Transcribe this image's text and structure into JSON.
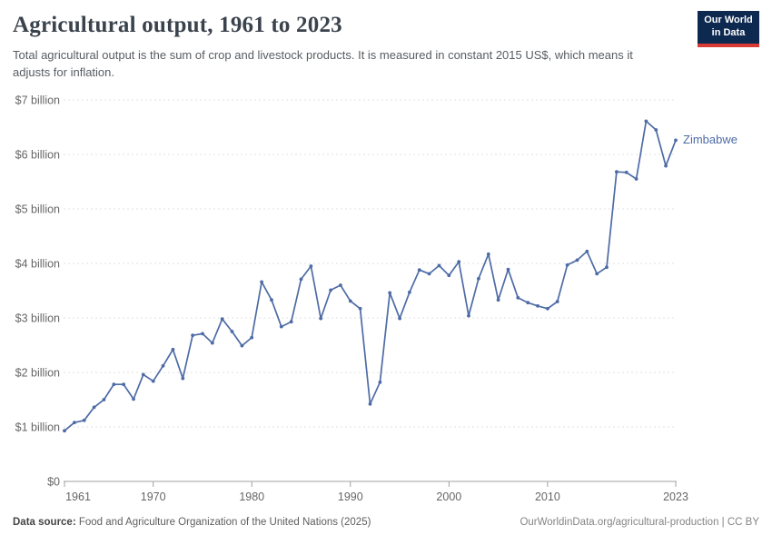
{
  "header": {
    "title": "Agricultural output, 1961 to 2023",
    "subtitle": "Total agricultural output is the sum of crop and livestock products. It is measured in constant 2015 US$, which means it adjusts for inflation."
  },
  "logo": {
    "line1": "Our World",
    "line2": "in Data",
    "bg_color": "#0d2950",
    "stripe_color": "#d93a34"
  },
  "chart_data": {
    "type": "line",
    "title": "Agricultural output, 1961 to 2023",
    "unit": "constant 2015 US$",
    "xlabel": "",
    "ylabel": "",
    "xlim": [
      1961,
      2023
    ],
    "ylim_billion_usd": [
      0,
      7
    ],
    "grid": "horizontal-dashed",
    "legend_position": "end-of-line-label",
    "x_ticks": [
      1961,
      1970,
      1980,
      1990,
      2000,
      2010,
      2023
    ],
    "y_tick_values_billion": [
      0,
      1,
      2,
      3,
      4,
      5,
      6,
      7
    ],
    "y_tick_labels": [
      "$0",
      "$1 billion",
      "$2 billion",
      "$3 billion",
      "$4 billion",
      "$5 billion",
      "$6 billion",
      "$7 billion"
    ],
    "series": [
      {
        "name": "Zimbabwe",
        "color": "#4d6ba5",
        "x": [
          1961,
          1962,
          1963,
          1964,
          1965,
          1966,
          1967,
          1968,
          1969,
          1970,
          1971,
          1972,
          1973,
          1974,
          1975,
          1976,
          1977,
          1978,
          1979,
          1980,
          1981,
          1982,
          1983,
          1984,
          1985,
          1986,
          1987,
          1988,
          1989,
          1990,
          1991,
          1992,
          1993,
          1994,
          1995,
          1996,
          1997,
          1998,
          1999,
          2000,
          2001,
          2002,
          2003,
          2004,
          2005,
          2006,
          2007,
          2008,
          2009,
          2010,
          2011,
          2012,
          2013,
          2014,
          2015,
          2016,
          2017,
          2018,
          2019,
          2020,
          2021,
          2022,
          2023
        ],
        "values_billion_usd": [
          0.93,
          1.08,
          1.12,
          1.36,
          1.5,
          1.78,
          1.78,
          1.51,
          1.96,
          1.84,
          2.12,
          2.42,
          1.89,
          2.68,
          2.71,
          2.54,
          2.98,
          2.75,
          2.49,
          2.64,
          3.66,
          3.33,
          2.84,
          2.93,
          3.71,
          3.95,
          2.99,
          3.51,
          3.6,
          3.31,
          3.17,
          1.42,
          1.82,
          3.46,
          2.99,
          3.47,
          3.88,
          3.81,
          3.96,
          3.78,
          4.03,
          3.04,
          3.72,
          4.17,
          3.33,
          3.89,
          3.37,
          3.28,
          3.22,
          3.17,
          3.3,
          3.97,
          4.06,
          4.22,
          3.81,
          3.93,
          5.68,
          5.67,
          5.55,
          6.61,
          6.45,
          5.79,
          6.26
        ]
      }
    ],
    "colors": {
      "line": "#4d6ba5",
      "gridline": "#e0e0e0",
      "axis": "#a1a1a1",
      "tick_text": "#666666"
    }
  },
  "footer": {
    "source_label": "Data source:",
    "source_text": " Food and Agriculture Organization of the United Nations (2025)",
    "credit": "OurWorldinData.org/agricultural-production | CC BY"
  }
}
